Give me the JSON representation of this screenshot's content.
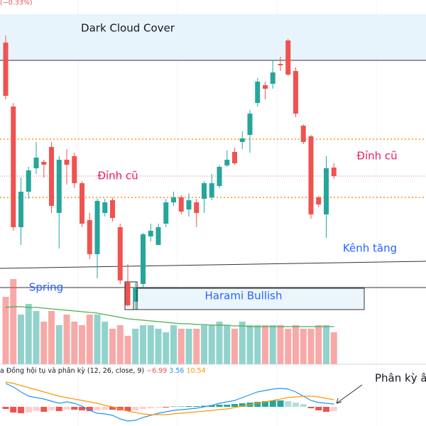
{
  "chart_data": {
    "type": "candlestick",
    "change_label": "(−0.33%)",
    "up_color": "#26a69a",
    "down_color": "#ef5350",
    "open": [
      110,
      87.5,
      45,
      57.5,
      65.75,
      68,
      73.25,
      50,
      68.75,
      70,
      60.5,
      47.5,
      35.5,
      50,
      54.5,
      45,
      25.5,
      18.75,
      25,
      41.75,
      38.75,
      46.25,
      53.75,
      55.5,
      51.25,
      53.75,
      55,
      55.5,
      59.5,
      66.75,
      71.5,
      75,
      77.5,
      88.75,
      95,
      95.5,
      102.5,
      110.75,
      100,
      80.75,
      77,
      55.5,
      49.5,
      66
    ],
    "high": [
      112.5,
      88.75,
      62.5,
      66.25,
      75,
      68.75,
      75,
      70,
      72.5,
      71.25,
      61.25,
      50,
      55,
      55,
      55.5,
      46.25,
      32,
      25.5,
      43,
      46.25,
      46.25,
      55,
      57.5,
      56.25,
      57,
      55,
      61.25,
      63.75,
      66.75,
      72,
      73,
      78.75,
      86.25,
      97.5,
      96.25,
      103.75,
      105,
      111.25,
      101.25,
      81.25,
      77.5,
      56,
      70,
      67.5
    ],
    "low": [
      90,
      43.75,
      38.75,
      55,
      63.75,
      62.5,
      50,
      37.5,
      60,
      58.75,
      45,
      33.75,
      27,
      48.75,
      47,
      25,
      17,
      16.25,
      23.75,
      40,
      38.75,
      45,
      52.5,
      49.5,
      48.75,
      45,
      50,
      54.5,
      58.75,
      66.25,
      67,
      72.5,
      71.25,
      87.5,
      90,
      93.75,
      100,
      98.25,
      83.75,
      74.25,
      48,
      52,
      41.25,
      62
    ],
    "close": [
      91.25,
      45,
      57.5,
      65,
      69.5,
      67,
      52.5,
      68.75,
      67,
      60.5,
      46.25,
      35.5,
      54.25,
      53.75,
      48.25,
      26.25,
      17.5,
      23.75,
      42.5,
      43.75,
      45,
      53.75,
      55.5,
      50.5,
      54.5,
      50,
      60.5,
      60.5,
      66.25,
      68.75,
      67.5,
      76.25,
      85,
      96.25,
      93.75,
      99.5,
      102,
      98.75,
      85,
      75,
      49.5,
      53,
      65.75,
      63
    ],
    "volume": [
      95,
      120,
      70,
      85,
      75,
      60,
      75,
      55,
      70,
      60,
      55,
      70,
      70,
      60,
      50,
      55,
      40,
      50,
      55,
      55,
      50,
      45,
      55,
      50,
      50,
      50,
      55,
      55,
      60,
      55,
      50,
      60,
      55,
      55,
      55,
      55,
      55,
      50,
      55,
      50,
      50,
      55,
      55,
      45
    ],
    "volume_ma": [
      80,
      81,
      81,
      80,
      80,
      79,
      78,
      77,
      76,
      75,
      74,
      73,
      72,
      70,
      68,
      66,
      64,
      63,
      62,
      61,
      60,
      59,
      58,
      57,
      57,
      56,
      56,
      55,
      55,
      55,
      54,
      54,
      53,
      53,
      53,
      53,
      53,
      53,
      53,
      53,
      53,
      53,
      53,
      53
    ],
    "macd_title": "a Đồng hội tụ và phân kỳ (12, 26, close, 9)",
    "macd_values": [
      "−6.99",
      "3.56",
      "10.54"
    ],
    "macd_hist": [
      -3,
      -8,
      -9,
      -8,
      -6,
      -7,
      -5,
      -6,
      -4,
      -4,
      -5,
      -6,
      -5,
      -4,
      -4,
      -5,
      -6,
      -5,
      -3,
      -2,
      -1,
      -1,
      0.5,
      0.5,
      1,
      1,
      1.5,
      2,
      3,
      3,
      4,
      5,
      6,
      7,
      8,
      9,
      9,
      8,
      6,
      4,
      -2,
      -5,
      -7,
      -6
    ],
    "macd_line": [
      33,
      28,
      21,
      15,
      13,
      11,
      8,
      5,
      7,
      5,
      1,
      -5,
      -9,
      -10,
      -12,
      -17,
      -20,
      -19,
      -15,
      -12,
      -9,
      -7,
      -5,
      -4,
      -3,
      -2,
      0,
      2,
      5,
      7,
      9,
      13,
      17,
      21,
      23,
      25,
      26,
      25,
      21,
      15,
      9,
      6,
      5,
      4
    ],
    "signal_line": [
      35,
      33,
      30,
      27,
      24,
      21,
      18,
      15,
      13,
      11,
      9,
      7,
      5,
      2,
      0,
      -3,
      -6,
      -8,
      -10,
      -11,
      -11,
      -11,
      -10,
      -9,
      -8,
      -7,
      -6,
      -5,
      -4,
      -3,
      -1,
      1,
      3,
      5,
      7,
      9,
      11,
      13,
      14,
      15,
      15,
      14,
      12,
      10
    ],
    "annotations": {
      "dark_cloud": "Dark Cloud Cover",
      "old_peak_left": "Đỉnh cũ",
      "old_peak_right": "Đỉnh cũ",
      "channel": "Kênh tăng",
      "spring": "Spring",
      "harami": "Harami Bullish",
      "divergence": "Phân kỳ âm"
    }
  }
}
